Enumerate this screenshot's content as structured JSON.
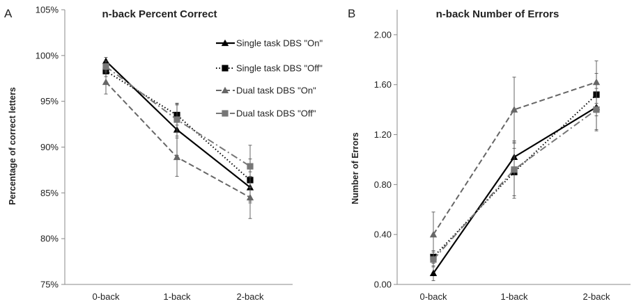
{
  "chart_data": [
    {
      "panel": "A",
      "type": "line",
      "title": "n-back Percent Correct",
      "xlabel": "",
      "ylabel": "Percentage of correct letters",
      "categories": [
        "0-back",
        "1-back",
        "2-back"
      ],
      "ylim": [
        75,
        105
      ],
      "yticks": [
        75,
        80,
        85,
        90,
        95,
        100,
        105
      ],
      "ytick_labels": [
        "75%",
        "80%",
        "85%",
        "90%",
        "95%",
        "100%",
        "105%"
      ],
      "grid": false,
      "legend_position": "top-right",
      "series": [
        {
          "name": "Single task DBS \"On\"",
          "values": [
            99.4,
            91.9,
            85.6
          ],
          "errors": [
            0.4,
            2.8,
            1.7
          ],
          "color": "#000000",
          "line": "solid",
          "marker": "triangle"
        },
        {
          "name": "Single task DBS \"Off\"",
          "values": [
            98.3,
            93.5,
            86.4
          ],
          "errors": [
            0.6,
            1.1,
            2.3
          ],
          "color": "#000000",
          "line": "dotted",
          "marker": "square"
        },
        {
          "name": "Dual task DBS \"On\"",
          "values": [
            97.1,
            88.9,
            84.5
          ],
          "errors": [
            1.3,
            2.1,
            2.3
          ],
          "color": "#666666",
          "line": "dashed",
          "marker": "triangle"
        },
        {
          "name": "Dual task DBS \"Off\"",
          "values": [
            98.8,
            93.0,
            87.9
          ],
          "errors": [
            0.6,
            1.8,
            2.3
          ],
          "color": "#777777",
          "line": "dashdot",
          "marker": "square"
        }
      ]
    },
    {
      "panel": "B",
      "type": "line",
      "title": "n-back Number of Errors",
      "xlabel": "",
      "ylabel": "Number of Errors",
      "categories": [
        "0-back",
        "1-back",
        "2-back"
      ],
      "ylim": [
        0,
        2.2
      ],
      "yticks": [
        0,
        0.4,
        0.8,
        1.2,
        1.6,
        2.0
      ],
      "ytick_labels": [
        "0.00",
        "0.40",
        "0.80",
        "1.20",
        "1.60",
        "2.00"
      ],
      "grid": false,
      "series": [
        {
          "name": "Single task DBS \"On\"",
          "values": [
            0.09,
            1.02,
            1.42
          ],
          "errors": [
            0.06,
            0.11,
            0.18
          ],
          "color": "#000000",
          "line": "solid",
          "marker": "triangle"
        },
        {
          "name": "Single task DBS \"Off\"",
          "values": [
            0.22,
            0.9,
            1.52
          ],
          "errors": [
            0.05,
            0.19,
            0.17
          ],
          "color": "#000000",
          "line": "dotted",
          "marker": "square"
        },
        {
          "name": "Dual task DBS \"On\"",
          "values": [
            0.4,
            1.4,
            1.62
          ],
          "errors": [
            0.18,
            0.26,
            0.17
          ],
          "color": "#666666",
          "line": "dashed",
          "marker": "triangle"
        },
        {
          "name": "Dual task DBS \"Off\"",
          "values": [
            0.2,
            0.92,
            1.4
          ],
          "errors": [
            0.06,
            0.23,
            0.17
          ],
          "color": "#777777",
          "line": "dashdot",
          "marker": "square"
        }
      ]
    }
  ]
}
